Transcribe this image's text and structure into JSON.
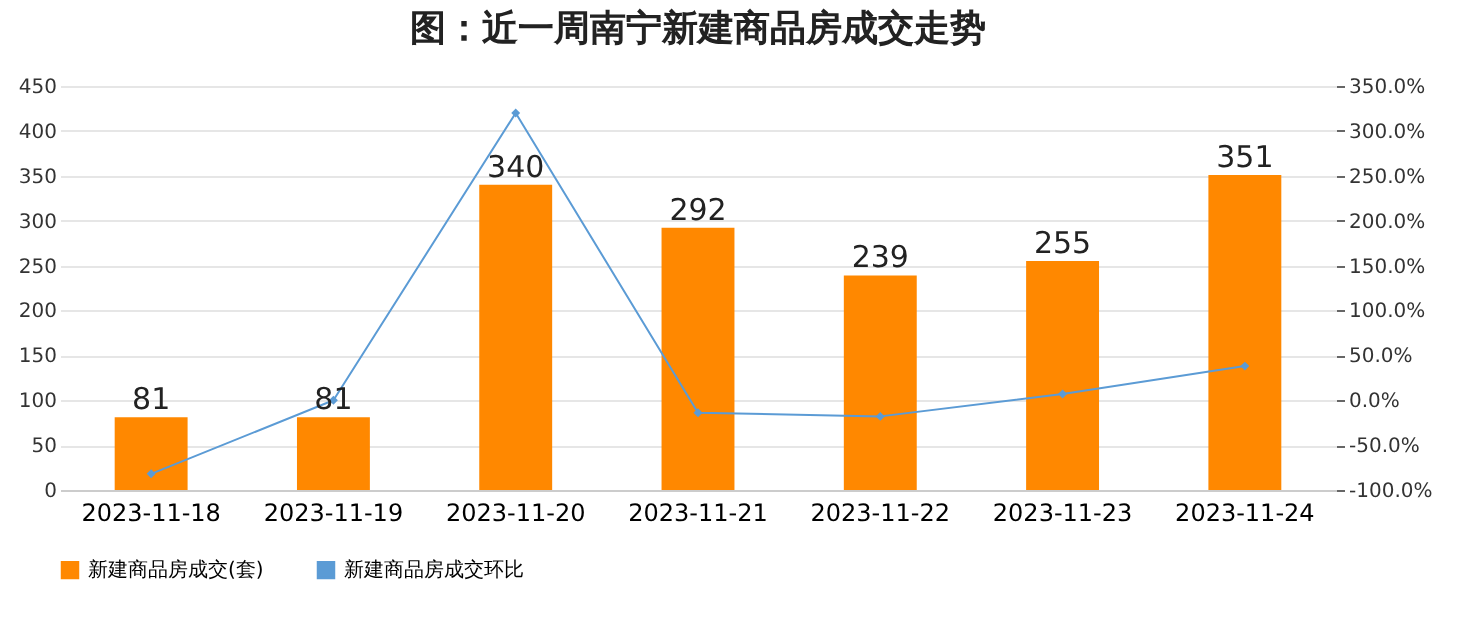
{
  "chart_data": {
    "type": "bar",
    "title": "图：近一周南宁新建商品房成交走势",
    "categories": [
      "2023-11-18",
      "2023-11-19",
      "2023-11-20",
      "2023-11-21",
      "2023-11-22",
      "2023-11-23",
      "2023-11-24"
    ],
    "series": [
      {
        "name": "新建商品房成交(套)",
        "color": "#ff8800",
        "values": [
          81,
          81,
          340,
          292,
          239,
          255,
          351
        ],
        "value_labels": [
          "81",
          "81",
          "340",
          "292",
          "239",
          "255",
          "351"
        ]
      },
      {
        "name": "新建商品房成交环比",
        "type": "line",
        "axis": "y2",
        "color": "#5b9bd5",
        "marker": "diamond",
        "values": [
          -82,
          0,
          320,
          -14,
          -18,
          7,
          38
        ]
      }
    ],
    "ylim": [
      0,
      450
    ],
    "yticks": [
      0,
      50,
      100,
      150,
      200,
      250,
      300,
      350,
      400,
      450
    ],
    "y2lim": [
      -100,
      350
    ],
    "y2ticks": [
      {
        "value": -100,
        "label": "-100.0%"
      },
      {
        "value": -50,
        "label": "-50.0%"
      },
      {
        "value": 0,
        "label": "0.0%"
      },
      {
        "value": 50,
        "label": "50.0%"
      },
      {
        "value": 100,
        "label": "100.0%"
      },
      {
        "value": 150,
        "label": "150.0%"
      },
      {
        "value": 200,
        "label": "200.0%"
      },
      {
        "value": 250,
        "label": "250.0%"
      },
      {
        "value": 300,
        "label": "300.0%"
      },
      {
        "value": 350,
        "label": "350.0%"
      }
    ],
    "grid": "y",
    "legend": "bottom"
  }
}
